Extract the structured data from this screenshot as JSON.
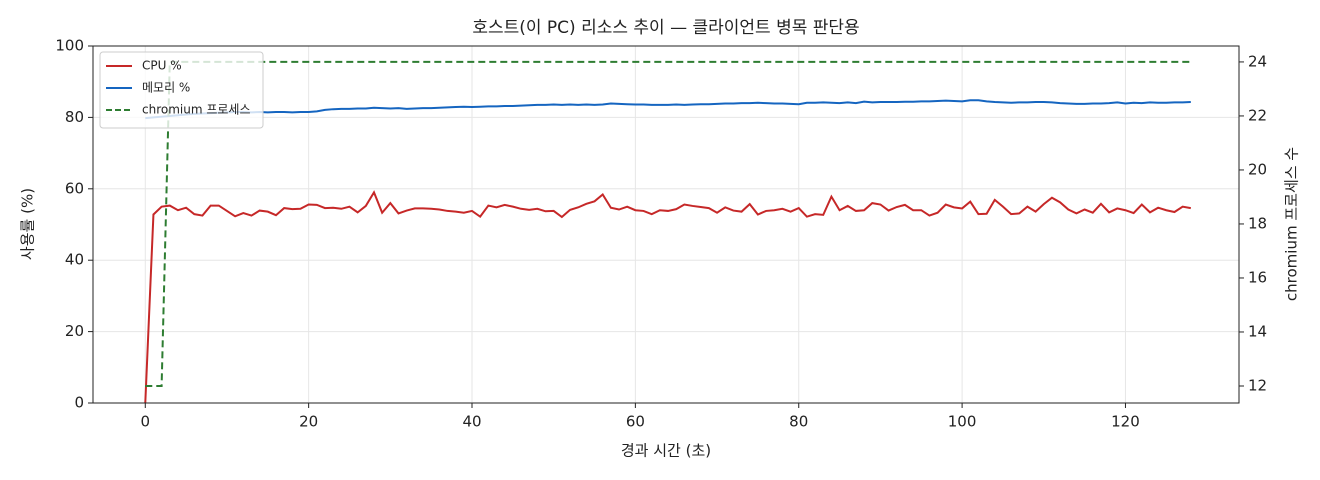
{
  "chart_data": {
    "type": "line",
    "title": "호스트(이 PC) 리소스 추이 — 클라이언트 병목 판단용",
    "x_label": "경과 시간 (초)",
    "y_label": "사용률 (%)",
    "y2_label": "chromium 프로세스 수",
    "x": [
      0,
      1,
      2,
      3,
      4,
      5,
      6,
      7,
      8,
      9,
      10,
      11,
      12,
      13,
      14,
      15,
      16,
      17,
      18,
      19,
      20,
      21,
      22,
      23,
      24,
      25,
      26,
      27,
      28,
      29,
      30,
      31,
      32,
      33,
      34,
      35,
      36,
      37,
      38,
      39,
      40,
      41,
      42,
      43,
      44,
      45,
      46,
      47,
      48,
      49,
      50,
      51,
      52,
      53,
      54,
      55,
      56,
      57,
      58,
      59,
      60,
      61,
      62,
      63,
      64,
      65,
      66,
      67,
      68,
      69,
      70,
      71,
      72,
      73,
      74,
      75,
      76,
      77,
      78,
      79,
      80,
      81,
      82,
      83,
      84,
      85,
      86,
      87,
      88,
      89,
      90,
      91,
      92,
      93,
      94,
      95,
      96,
      97,
      98,
      99,
      100,
      101,
      102,
      103,
      104,
      105,
      106,
      107,
      108,
      109,
      110,
      111,
      112,
      113,
      114,
      115,
      116,
      117,
      118,
      119,
      120,
      121,
      122,
      123,
      124,
      125,
      126,
      127,
      128
    ],
    "series": [
      {
        "name": "CPU %",
        "color": "#c62828",
        "linestyle": "solid",
        "values": [
          0,
          52.8,
          55.0,
          55.3,
          54.0,
          54.7,
          52.9,
          52.5,
          55.3,
          55.3,
          53.8,
          52.3,
          53.2,
          52.5,
          53.9,
          53.6,
          52.6,
          54.6,
          54.3,
          54.4,
          55.6,
          55.5,
          54.6,
          54.7,
          54.4,
          55.0,
          53.4,
          55.2,
          59.0,
          53.3,
          56.0,
          53.1,
          53.9,
          54.5,
          54.5,
          54.4,
          54.2,
          53.8,
          53.6,
          53.3,
          53.8,
          52.2,
          55.3,
          54.8,
          55.5,
          55.0,
          54.4,
          54.1,
          54.4,
          53.7,
          53.8,
          52.1,
          54.1,
          54.8,
          55.8,
          56.5,
          58.4,
          54.7,
          54.2,
          55.0,
          54.0,
          53.8,
          52.9,
          54.0,
          53.8,
          54.3,
          55.6,
          55.2,
          54.9,
          54.6,
          53.3,
          54.8,
          53.9,
          53.6,
          55.7,
          52.8,
          53.8,
          54.0,
          54.4,
          53.6,
          54.6,
          52.2,
          52.9,
          52.7,
          57.8,
          54.0,
          55.2,
          53.8,
          54.0,
          56.0,
          55.6,
          53.9,
          54.9,
          55.5,
          54.0,
          54.0,
          52.5,
          53.3,
          55.6,
          54.8,
          54.5,
          56.4,
          52.9,
          53.0,
          56.9,
          55.0,
          52.9,
          53.1,
          55.0,
          53.6,
          55.7,
          57.5,
          56.2,
          54.2,
          53.1,
          54.2,
          53.3,
          55.8,
          53.4,
          54.5,
          54.0,
          53.2,
          55.6,
          53.4,
          54.7,
          54.0,
          53.5,
          55.0,
          54.6
        ]
      },
      {
        "name": "메모리 %",
        "color": "#1565c0",
        "linestyle": "solid",
        "values": [
          79.8,
          80.0,
          80.2,
          80.4,
          80.6,
          80.8,
          81.0,
          81.1,
          81.2,
          81.3,
          81.4,
          81.5,
          81.5,
          81.4,
          81.5,
          81.4,
          81.5,
          81.5,
          81.4,
          81.5,
          81.5,
          81.7,
          82.1,
          82.3,
          82.4,
          82.4,
          82.5,
          82.5,
          82.7,
          82.6,
          82.5,
          82.6,
          82.4,
          82.5,
          82.6,
          82.6,
          82.7,
          82.8,
          82.9,
          83.0,
          82.9,
          83.0,
          83.1,
          83.1,
          83.2,
          83.2,
          83.3,
          83.4,
          83.5,
          83.5,
          83.6,
          83.5,
          83.6,
          83.5,
          83.6,
          83.5,
          83.6,
          83.9,
          83.8,
          83.7,
          83.6,
          83.6,
          83.5,
          83.5,
          83.5,
          83.6,
          83.5,
          83.6,
          83.7,
          83.7,
          83.8,
          83.9,
          83.9,
          84.0,
          84.0,
          84.1,
          84.0,
          83.9,
          83.9,
          83.8,
          83.7,
          84.1,
          84.1,
          84.2,
          84.1,
          84.0,
          84.2,
          84.0,
          84.4,
          84.2,
          84.3,
          84.3,
          84.3,
          84.4,
          84.4,
          84.5,
          84.5,
          84.6,
          84.7,
          84.6,
          84.5,
          84.8,
          84.8,
          84.5,
          84.3,
          84.2,
          84.1,
          84.2,
          84.2,
          84.3,
          84.3,
          84.2,
          84.0,
          83.9,
          83.8,
          83.8,
          83.9,
          83.9,
          84.0,
          84.2,
          83.9,
          84.1,
          84.0,
          84.2,
          84.1,
          84.1,
          84.2,
          84.2,
          84.3
        ]
      },
      {
        "name": "chromium 프로세스",
        "color": "#2e7d32",
        "linestyle": "dashed",
        "axis": "y2",
        "values": [
          12,
          12,
          12,
          24,
          24,
          24,
          24,
          24,
          24,
          24,
          24,
          24,
          24,
          24,
          24,
          24,
          24,
          24,
          24,
          24,
          24,
          24,
          24,
          24,
          24,
          24,
          24,
          24,
          24,
          24,
          24,
          24,
          24,
          24,
          24,
          24,
          24,
          24,
          24,
          24,
          24,
          24,
          24,
          24,
          24,
          24,
          24,
          24,
          24,
          24,
          24,
          24,
          24,
          24,
          24,
          24,
          24,
          24,
          24,
          24,
          24,
          24,
          24,
          24,
          24,
          24,
          24,
          24,
          24,
          24,
          24,
          24,
          24,
          24,
          24,
          24,
          24,
          24,
          24,
          24,
          24,
          24,
          24,
          24,
          24,
          24,
          24,
          24,
          24,
          24,
          24,
          24,
          24,
          24,
          24,
          24,
          24,
          24,
          24,
          24,
          24,
          24,
          24,
          24,
          24,
          24,
          24,
          24,
          24,
          24,
          24,
          24,
          24,
          24,
          24,
          24,
          24,
          24,
          24,
          24,
          24,
          24,
          24,
          24,
          24,
          24,
          24,
          24,
          24
        ]
      }
    ],
    "xlim": [
      -6.4,
      133.9
    ],
    "xticks": [
      0,
      20,
      40,
      60,
      80,
      100,
      120
    ],
    "ylim": [
      0,
      100
    ],
    "yticks": [
      0,
      20,
      40,
      60,
      80,
      100
    ],
    "y2lim": [
      11.37,
      24.59
    ],
    "y2ticks": [
      12,
      14,
      16,
      18,
      20,
      22,
      24
    ],
    "grid": true,
    "legend": "upper left"
  }
}
